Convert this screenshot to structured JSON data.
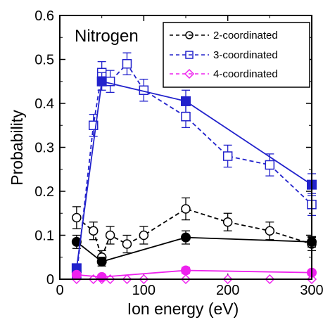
{
  "chart_data": {
    "type": "line",
    "title": "Nitrogen",
    "xlabel": "Ion energy (eV)",
    "ylabel": "Probability",
    "xlim": [
      0,
      300
    ],
    "ylim": [
      0,
      0.6
    ],
    "xticks": [
      0,
      100,
      200,
      300
    ],
    "yticks": [
      0,
      0.1,
      0.2,
      0.3,
      0.4,
      0.5,
      0.6
    ],
    "x_tick_labels": [
      "0",
      "100",
      "200",
      "300"
    ],
    "y_tick_labels": [
      "0",
      "0.1",
      "0.2",
      "0.3",
      "0.4",
      "0.5",
      "0.6"
    ],
    "y_top_label_shown": "0.6",
    "legend_position": "top-right",
    "series": [
      {
        "name": "2-coordinated",
        "color": "#000000",
        "style": "dashed",
        "marker": "open-circle",
        "x": [
          20,
          40,
          50,
          60,
          80,
          100,
          150,
          200,
          250,
          300
        ],
        "y": [
          0.14,
          0.11,
          0.05,
          0.1,
          0.08,
          0.1,
          0.16,
          0.13,
          0.11,
          0.08
        ],
        "err": [
          0.025,
          0.02,
          0.015,
          0.02,
          0.02,
          0.02,
          0.025,
          0.02,
          0.02,
          0.015
        ]
      },
      {
        "name": "3-coordinated",
        "color": "#2222cc",
        "style": "dashed",
        "marker": "open-square",
        "x": [
          20,
          40,
          50,
          60,
          80,
          100,
          150,
          200,
          250,
          300
        ],
        "y": [
          0.01,
          0.35,
          0.47,
          0.45,
          0.49,
          0.43,
          0.37,
          0.28,
          0.26,
          0.17
        ],
        "err": [
          0.01,
          0.025,
          0.025,
          0.025,
          0.025,
          0.025,
          0.025,
          0.025,
          0.025,
          0.025
        ]
      },
      {
        "name": "4-coordinated",
        "color": "#ee22ee",
        "style": "dashed",
        "marker": "open-diamond",
        "x": [
          20,
          40,
          50,
          60,
          80,
          100,
          150,
          200,
          250,
          300
        ],
        "y": [
          0.0,
          0.0,
          0.0,
          0.0,
          0.0,
          0.0,
          0.0,
          0.0,
          0.0,
          0.0
        ],
        "err": [
          0,
          0,
          0,
          0,
          0,
          0,
          0,
          0,
          0,
          0
        ]
      },
      {
        "color": "#000000",
        "style": "solid",
        "marker": "filled-circle",
        "x": [
          20,
          50,
          150,
          300
        ],
        "y": [
          0.085,
          0.04,
          0.095,
          0.085
        ],
        "err": [
          0.015,
          0.01,
          0.015,
          0.012
        ]
      },
      {
        "color": "#2222cc",
        "style": "solid",
        "marker": "filled-square",
        "x": [
          20,
          50,
          150,
          300
        ],
        "y": [
          0.025,
          0.45,
          0.405,
          0.215
        ],
        "err": [
          0.01,
          0.02,
          0.025,
          0.025
        ]
      },
      {
        "color": "#ee22ee",
        "style": "solid",
        "marker": "filled-circle",
        "x": [
          20,
          50,
          150,
          300
        ],
        "y": [
          0.01,
          0.005,
          0.02,
          0.015
        ],
        "err": [
          0.005,
          0.005,
          0.007,
          0.005
        ]
      }
    ]
  }
}
